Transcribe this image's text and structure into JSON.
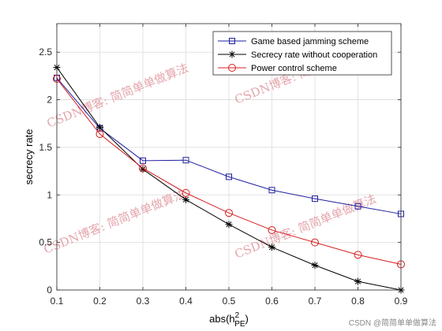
{
  "chart_data": {
    "type": "line",
    "x": [
      0.1,
      0.2,
      0.3,
      0.4,
      0.5,
      0.6,
      0.7,
      0.8,
      0.9
    ],
    "xlim": [
      0.1,
      0.9
    ],
    "ylim": [
      0,
      2.8
    ],
    "xticks": [
      "0.1",
      "0.2",
      "0.3",
      "0.4",
      "0.5",
      "0.6",
      "0.7",
      "0.8",
      "0.9"
    ],
    "yticks": [
      "0",
      "0.5",
      "1",
      "1.5",
      "2",
      "2.5"
    ],
    "ytick_values": [
      0,
      0.5,
      1,
      1.5,
      2,
      2.5
    ],
    "xlabel_base": "abs(h",
    "xlabel_sup": "2",
    "xlabel_sub": "PE",
    "xlabel_end": ")",
    "ylabel": "secrecy rate",
    "grid": true,
    "legend_position": "top-right",
    "series": [
      {
        "name": "Game based jamming scheme",
        "color": "#1f1fa0",
        "marker": "square",
        "values": [
          2.23,
          1.7,
          1.36,
          1.365,
          1.19,
          1.05,
          0.96,
          0.88,
          0.8
        ]
      },
      {
        "name": "Secrecy rate without cooperation",
        "color": "#000000",
        "marker": "star",
        "values": [
          2.34,
          1.71,
          1.27,
          0.95,
          0.69,
          0.45,
          0.26,
          0.09,
          0.0
        ]
      },
      {
        "name": "Power control scheme",
        "color": "#d62020",
        "marker": "circle",
        "values": [
          2.22,
          1.64,
          1.28,
          1.02,
          0.81,
          0.63,
          0.5,
          0.37,
          0.27
        ]
      }
    ]
  },
  "watermarks": [
    "CSDN博客: 简简单单做算法",
    "CSDN博客: 简简单单做算法",
    "CSDN博客: 简简单单做算法",
    "CSDN博客: 简简单单做算法"
  ],
  "credit": "CSDN @简简单单做算法"
}
